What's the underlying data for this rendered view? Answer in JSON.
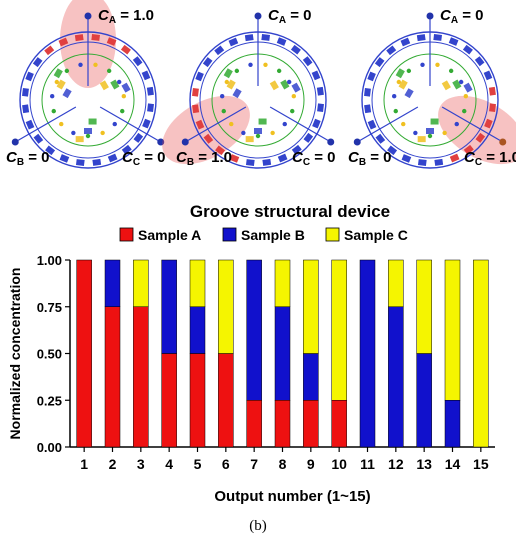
{
  "devices": [
    {
      "labels": {
        "a_sym": "C",
        "a_sub": "A",
        "a_val": " = 1.0",
        "b_sym": "C",
        "b_sub": "B",
        "b_val": " = 0",
        "c_sym": "C",
        "c_sub": "C",
        "c_val": " = 0"
      },
      "highlight": "A",
      "glow": "#e85050"
    },
    {
      "labels": {
        "a_sym": "C",
        "a_sub": "A",
        "a_val": " = 0",
        "b_sym": "C",
        "b_sub": "B",
        "b_val": " = 1.0",
        "c_sym": "C",
        "c_sub": "C",
        "c_val": " = 0"
      },
      "highlight": "B",
      "glow": "#e85050"
    },
    {
      "labels": {
        "a_sym": "C",
        "a_sub": "A",
        "a_val": " = 0",
        "b_sym": "C",
        "b_sub": "B",
        "b_val": " = 0",
        "c_sym": "C",
        "c_sub": "C",
        "c_val": " = 1.0"
      },
      "highlight": "C",
      "glow": "#e85050"
    }
  ],
  "chart_data": {
    "type": "bar",
    "stacked": true,
    "title": "Groove structural device",
    "xlabel": "Output number (1~15)",
    "ylabel": "Normalized concentration",
    "ylim": [
      0,
      1
    ],
    "yticks": [
      "0.00",
      "0.25",
      "0.50",
      "0.75",
      "1.00"
    ],
    "categories": [
      "1",
      "2",
      "3",
      "4",
      "5",
      "6",
      "7",
      "8",
      "9",
      "10",
      "11",
      "12",
      "13",
      "14",
      "15"
    ],
    "series": [
      {
        "name": "Sample A",
        "color": "#ee1111",
        "values": [
          1,
          0.75,
          0.75,
          0.5,
          0.5,
          0.5,
          0.25,
          0.25,
          0.25,
          0.25,
          0,
          0,
          0,
          0,
          0
        ]
      },
      {
        "name": "Sample B",
        "color": "#1111cc",
        "values": [
          0,
          0.25,
          0,
          0.5,
          0.25,
          0,
          0.75,
          0.5,
          0.25,
          0,
          1,
          0.75,
          0.5,
          0.25,
          0
        ]
      },
      {
        "name": "Sample C",
        "color": "#f5f500",
        "values": [
          0,
          0,
          0.25,
          0,
          0.25,
          0.5,
          0,
          0.25,
          0.5,
          0.75,
          0,
          0.25,
          0.5,
          0.75,
          1
        ]
      }
    ],
    "legend": "top-center",
    "grid": false
  },
  "caption": "(b)"
}
